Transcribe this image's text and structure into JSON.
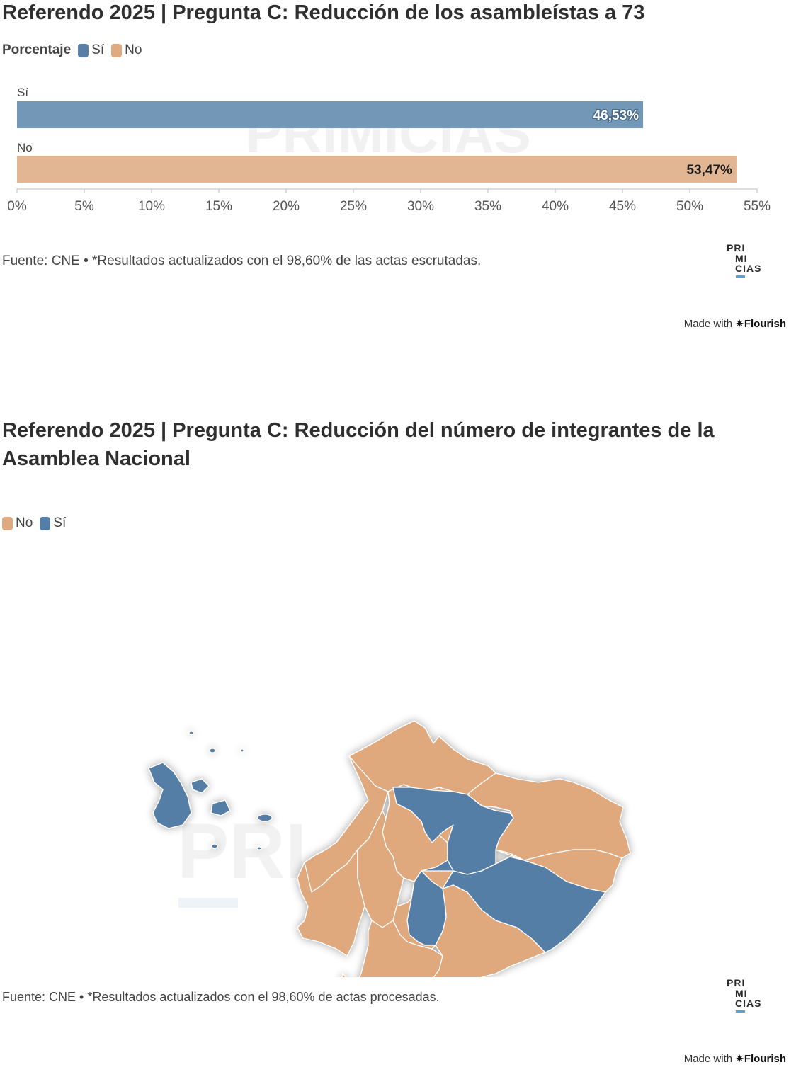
{
  "chart1": {
    "title": "Referendo 2025 | Pregunta C: Reducción de los asambleístas a 73",
    "legend_title": "Porcentaje",
    "legend": [
      {
        "label": "Sí",
        "color": "#5a7fa6"
      },
      {
        "label": "No",
        "color": "#e0aa80"
      }
    ],
    "watermark": "PRIMICIAS",
    "source": "Fuente: CNE • *Resultados actualizados con el 98,60% de las actas escrutadas.",
    "brand": {
      "line1": "PRI",
      "line2": "MI",
      "line3": "CIAS"
    },
    "made_with": "Made with",
    "flourish": "✷Flourish",
    "chart_data": {
      "type": "bar",
      "orientation": "horizontal",
      "categories": [
        "Sí",
        "No"
      ],
      "values": [
        46.53,
        53.47
      ],
      "data_labels": [
        "46,53%",
        "53,47%"
      ],
      "colors": [
        "#7398b7",
        "#e2b593"
      ],
      "xlim": [
        0,
        55
      ],
      "xticks": [
        "0%",
        "5%",
        "10%",
        "15%",
        "20%",
        "25%",
        "30%",
        "35%",
        "40%",
        "45%",
        "50%",
        "55%"
      ],
      "xlabel": "",
      "ylabel": ""
    }
  },
  "chart2": {
    "title": "Referendo 2025 | Pregunta C: Reducción del número de integrantes de la Asamblea Nacional",
    "legend": [
      {
        "label": "No",
        "color": "#e0aa80"
      },
      {
        "label": "Sí",
        "color": "#557ea6"
      }
    ],
    "watermark": "PRI",
    "source": "Fuente: CNE • *Resultados actualizados con el 98,60% de actas procesadas.",
    "brand": {
      "line1": "PRI",
      "line2": "MI",
      "line3": "CIAS"
    },
    "made_with": "Made with",
    "flourish": "✷Flourish",
    "map": {
      "type": "choropleth",
      "regions": [
        {
          "result": "No"
        },
        {
          "result": "No"
        },
        {
          "result": "No"
        },
        {
          "result": "No"
        },
        {
          "result": "No"
        },
        {
          "result": "No"
        },
        {
          "result": "No"
        },
        {
          "result": "No"
        },
        {
          "result": "No"
        },
        {
          "result": "No"
        },
        {
          "result": "No"
        },
        {
          "result": "No"
        },
        {
          "result": "Sí"
        },
        {
          "result": "Sí"
        },
        {
          "result": "Sí"
        },
        {
          "result": "Sí"
        },
        {
          "result": "Sí"
        },
        {
          "result": "Sí"
        },
        {
          "result": "Sí"
        }
      ]
    }
  }
}
